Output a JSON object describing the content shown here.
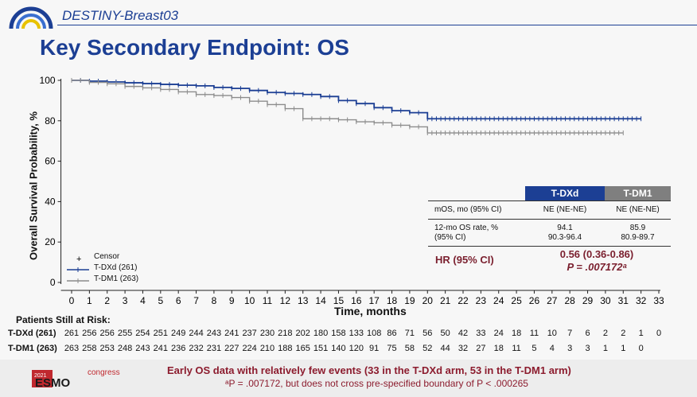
{
  "header": {
    "study_name": "DESTINY-Breast03",
    "title": "Key Secondary Endpoint: OS"
  },
  "colors": {
    "tdxd": "#1c3f94",
    "tdm1": "#8c8c8c",
    "accent": "#7a1f2e",
    "brand": "#1c3f94"
  },
  "chart_data": {
    "type": "line",
    "xlabel": "Time, months",
    "ylabel": "Overall Survival Probability, %",
    "xlim": [
      0,
      33
    ],
    "ylim": [
      0,
      100
    ],
    "x_ticks": [
      "0",
      "1",
      "2",
      "3",
      "4",
      "5",
      "6",
      "7",
      "8",
      "9",
      "10",
      "11",
      "12",
      "13",
      "14",
      "15",
      "16",
      "17",
      "18",
      "19",
      "20",
      "21",
      "22",
      "23",
      "24",
      "25",
      "26",
      "27",
      "28",
      "29",
      "30",
      "31",
      "32",
      "33"
    ],
    "y_ticks": [
      "0",
      "20",
      "40",
      "60",
      "80",
      "100"
    ],
    "legend": {
      "censor_label": "Censor",
      "placement": "bottom-left"
    },
    "series": [
      {
        "name": "T-DXd (261)",
        "color": "#1c3f94",
        "x": [
          0,
          1,
          2,
          3,
          4,
          5,
          6,
          7,
          8,
          9,
          10,
          11,
          12,
          13,
          14,
          15,
          16,
          17,
          18,
          19,
          20,
          21,
          22,
          23,
          24,
          25,
          26,
          27,
          28,
          29,
          30,
          31,
          32
        ],
        "y": [
          100,
          99.6,
          99.2,
          98.8,
          98.4,
          98,
          97.6,
          97.3,
          96.5,
          96,
          95,
          94,
          93.5,
          93,
          92,
          90,
          88.5,
          86.5,
          85,
          84,
          81,
          81,
          81,
          81,
          81,
          81,
          81,
          81,
          81,
          81,
          81,
          81,
          81
        ]
      },
      {
        "name": "T-DM1 (263)",
        "color": "#8c8c8c",
        "x": [
          0,
          1,
          2,
          3,
          4,
          5,
          6,
          7,
          8,
          9,
          10,
          11,
          12,
          13,
          14,
          15,
          16,
          17,
          18,
          19,
          20,
          21,
          22,
          23,
          24,
          25,
          26,
          27,
          28,
          29,
          30,
          31
        ],
        "y": [
          100,
          99,
          98.3,
          97,
          96.3,
          95.5,
          94.3,
          93,
          92.5,
          91.5,
          89.7,
          88,
          86,
          81,
          81,
          80.5,
          79.5,
          79,
          77.8,
          77,
          74,
          74,
          74,
          74,
          74,
          74,
          74,
          74,
          74,
          74,
          74,
          74
        ]
      }
    ]
  },
  "table": {
    "col1_header": "T-DXd",
    "col2_header": "T-DM1",
    "row1_label": "mOS, mo (95% CI)",
    "row1_col1": "NE (NE-NE)",
    "row1_col2": "NE (NE-NE)",
    "row2_label_a": "12-mo OS rate, %",
    "row2_label_b": "(95% CI)",
    "row2_col1_a": "94.1",
    "row2_col1_b": "90.3-96.4",
    "row2_col2_a": "85.9",
    "row2_col2_b": "80.9-89.7",
    "hr_label": "HR (95% CI)",
    "hr_value": "0.56 (0.36-0.86)",
    "p_value": "P = .007172ᵃ"
  },
  "risk": {
    "title": "Patients Still at Risk:",
    "rows": [
      {
        "label": "T-DXd (261)",
        "values": [
          "261",
          "256",
          "256",
          "255",
          "254",
          "251",
          "249",
          "244",
          "243",
          "241",
          "237",
          "230",
          "218",
          "202",
          "180",
          "158",
          "133",
          "108",
          "86",
          "71",
          "56",
          "50",
          "42",
          "33",
          "24",
          "18",
          "11",
          "10",
          "7",
          "6",
          "2",
          "2",
          "1",
          "0"
        ]
      },
      {
        "label": "T-DM1 (263)",
        "values": [
          "263",
          "258",
          "253",
          "248",
          "243",
          "241",
          "236",
          "232",
          "231",
          "227",
          "224",
          "210",
          "188",
          "165",
          "151",
          "140",
          "120",
          "91",
          "75",
          "58",
          "52",
          "44",
          "32",
          "27",
          "18",
          "11",
          "5",
          "4",
          "3",
          "3",
          "1",
          "1",
          "0",
          ""
        ]
      }
    ]
  },
  "footer": {
    "year": "2021",
    "brand": "ESMO",
    "congress": "congress",
    "note_line1": "Early OS data with relatively few events (33 in the T-DXd arm, 53 in the T-DM1 arm)",
    "note_line2": "ᵃP = .007172, but does not cross pre-specified boundary of P < .000265"
  }
}
